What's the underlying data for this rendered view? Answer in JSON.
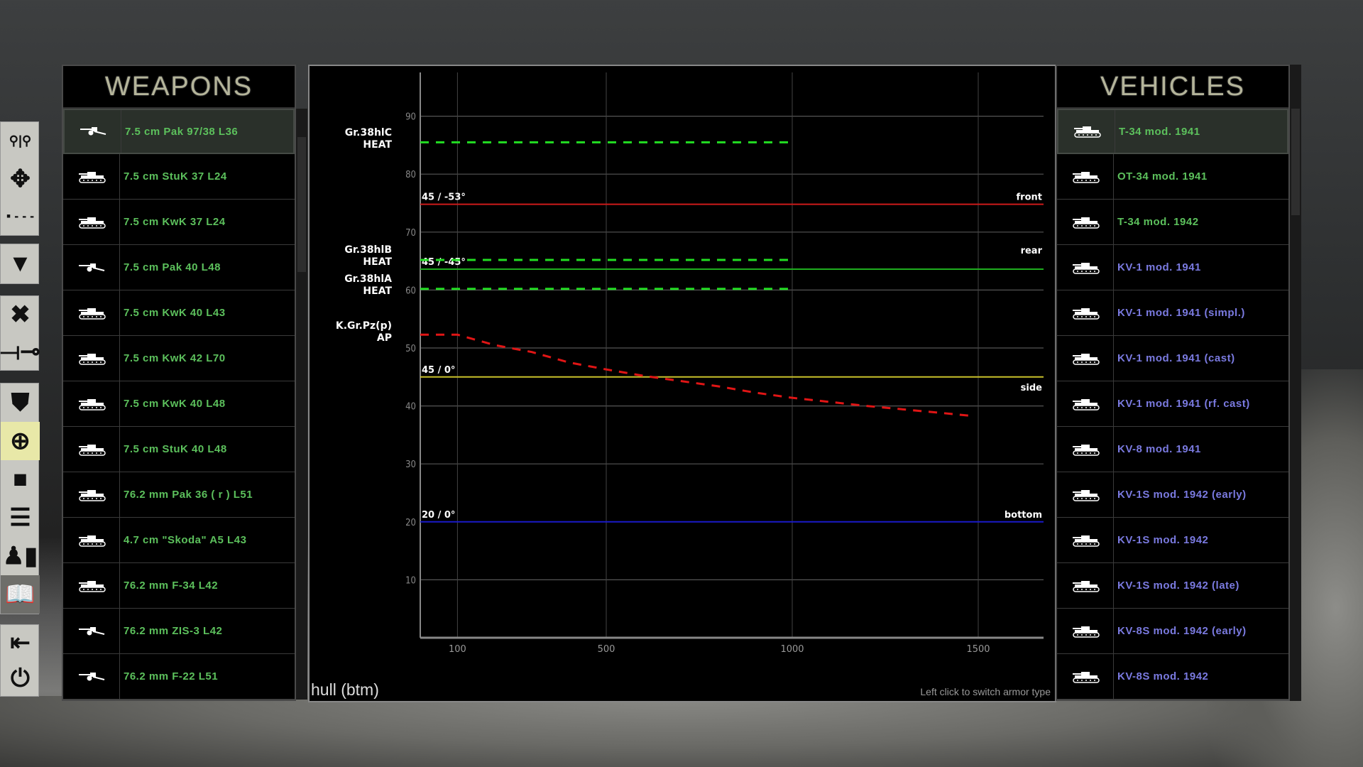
{
  "toolbar": {
    "groups": [
      [
        {
          "name": "zoom-icon",
          "glyph": "⚲|⚲"
        },
        {
          "name": "pan-arrows-icon",
          "glyph": "✥"
        },
        {
          "name": "line-style-icon",
          "glyph": "▪ - - -"
        }
      ],
      [
        {
          "name": "filter-icon",
          "glyph": "▼"
        }
      ],
      [
        {
          "name": "close-x-icon",
          "glyph": "✖"
        },
        {
          "name": "line-of-sight-icon",
          "glyph": "⟞⊸"
        }
      ],
      [
        {
          "name": "armor-shield-icon",
          "glyph": "⛊"
        },
        {
          "name": "tank-target-icon",
          "glyph": "⊕",
          "active": true
        },
        {
          "name": "color-swatch-icon",
          "glyph": "■"
        },
        {
          "name": "list-icon",
          "glyph": "☰"
        },
        {
          "name": "size-ruler-icon",
          "glyph": "♟▮"
        },
        {
          "name": "book-icon",
          "glyph": "📖",
          "dark": true
        }
      ],
      [
        {
          "name": "exit-icon",
          "glyph": "⇤"
        },
        {
          "name": "power-icon",
          "glyph": "⏻"
        }
      ]
    ]
  },
  "weapons": {
    "title": "WEAPONS",
    "color": "#5cc05c",
    "items": [
      {
        "label": "7.5 cm Pak 97/38 L36",
        "icon": "gun",
        "selected": true
      },
      {
        "label": "7.5 cm StuK 37 L24",
        "icon": "tank"
      },
      {
        "label": "7.5 cm KwK 37 L24",
        "icon": "tank"
      },
      {
        "label": "7.5 cm Pak 40 L48",
        "icon": "gun"
      },
      {
        "label": "7.5 cm KwK 40 L43",
        "icon": "tank"
      },
      {
        "label": "7.5 cm KwK 42 L70",
        "icon": "tank"
      },
      {
        "label": "7.5 cm KwK 40 L48",
        "icon": "tank"
      },
      {
        "label": "7.5 cm StuK 40 L48",
        "icon": "tank"
      },
      {
        "label": "76.2 mm Pak 36 ( r ) L51",
        "icon": "tank"
      },
      {
        "label": "4.7 cm \"Skoda\" A5 L43",
        "icon": "tank"
      },
      {
        "label": "76.2 mm F-34 L42",
        "icon": "tank"
      },
      {
        "label": "76.2 mm ZIS-3 L42",
        "icon": "gun"
      },
      {
        "label": "76.2 mm F-22 L51",
        "icon": "gun"
      }
    ]
  },
  "vehicles": {
    "title": "VEHICLES",
    "items": [
      {
        "label": "T-34 mod. 1941",
        "color": "#5cc05c",
        "selected": true
      },
      {
        "label": "OT-34 mod. 1941",
        "color": "#5cc05c"
      },
      {
        "label": "T-34 mod. 1942",
        "color": "#5cc05c"
      },
      {
        "label": "KV-1 mod. 1941",
        "color": "#7a7ae0"
      },
      {
        "label": "KV-1 mod. 1941 (simpl.)",
        "color": "#7a7ae0"
      },
      {
        "label": "KV-1 mod. 1941 (cast)",
        "color": "#7a7ae0"
      },
      {
        "label": "KV-1 mod. 1941 (rf. cast)",
        "color": "#7a7ae0"
      },
      {
        "label": "KV-8 mod. 1941",
        "color": "#7a7ae0"
      },
      {
        "label": "KV-1S mod. 1942 (early)",
        "color": "#7a7ae0"
      },
      {
        "label": "KV-1S mod. 1942",
        "color": "#7a7ae0"
      },
      {
        "label": "KV-1S mod. 1942 (late)",
        "color": "#7a7ae0"
      },
      {
        "label": "KV-8S mod. 1942 (early)",
        "color": "#7a7ae0"
      },
      {
        "label": "KV-8S mod. 1942",
        "color": "#7a7ae0"
      }
    ]
  },
  "footer": {
    "armor_type": "hull (btm)",
    "hint": "Left click to switch armor type"
  },
  "chart_data": {
    "type": "line",
    "xlim": [
      0,
      1676
    ],
    "ylim": [
      0,
      98
    ],
    "xticks": [
      100,
      500,
      1000,
      1500
    ],
    "yticks": [
      10,
      20,
      30,
      40,
      50,
      60,
      70,
      80,
      90
    ],
    "grid": true,
    "armor_lines": [
      {
        "value": 74.8,
        "label": "45 / -53°",
        "side": "front",
        "color": "#cc1a1a"
      },
      {
        "value": 63.6,
        "label": "45 / -45°",
        "side": "rear",
        "color": "#1fae1f"
      },
      {
        "value": 45,
        "label": "45 / 0°",
        "side": "side",
        "color": "#c8c02a"
      },
      {
        "value": 20,
        "label": "20 / 0°",
        "side": "bottom",
        "color": "#1a1ac8"
      }
    ],
    "series": [
      {
        "name": "Gr.38hlC",
        "type_label": "HEAT",
        "color": "#22dd22",
        "x": [
          0,
          1000
        ],
        "y": [
          85.5,
          85.5
        ]
      },
      {
        "name": "Gr.38hlB",
        "type_label": "HEAT",
        "color": "#22dd22",
        "x": [
          0,
          1000
        ],
        "y": [
          65.2,
          65.2
        ]
      },
      {
        "name": "Gr.38hlA",
        "type_label": "HEAT",
        "color": "#22dd22",
        "x": [
          0,
          1000
        ],
        "y": [
          60.2,
          60.2
        ]
      },
      {
        "name": "K.Gr.Pz(p)",
        "type_label": "AP",
        "color": "#e01515",
        "x": [
          0,
          100,
          200,
          300,
          400,
          500,
          600,
          700,
          800,
          900,
          1000,
          1100,
          1200,
          1300,
          1400,
          1480
        ],
        "y": [
          52.3,
          52.3,
          50.5,
          49.3,
          47.5,
          46.3,
          45.2,
          44.3,
          43.4,
          42.3,
          41.4,
          40.7,
          40.0,
          39.4,
          38.8,
          38.3
        ]
      }
    ]
  }
}
